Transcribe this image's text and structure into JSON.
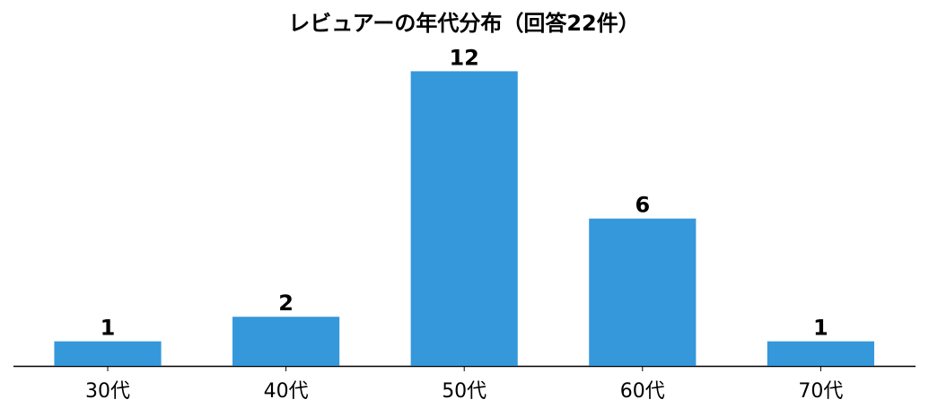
{
  "chart_data": {
    "type": "bar",
    "title": "レビュアーの年代分布（回答22件）",
    "categories": [
      "30代",
      "40代",
      "50代",
      "60代",
      "70代"
    ],
    "values": [
      1,
      2,
      12,
      6,
      1
    ],
    "color": "#3598db",
    "ylim": [
      0,
      12.6
    ]
  }
}
